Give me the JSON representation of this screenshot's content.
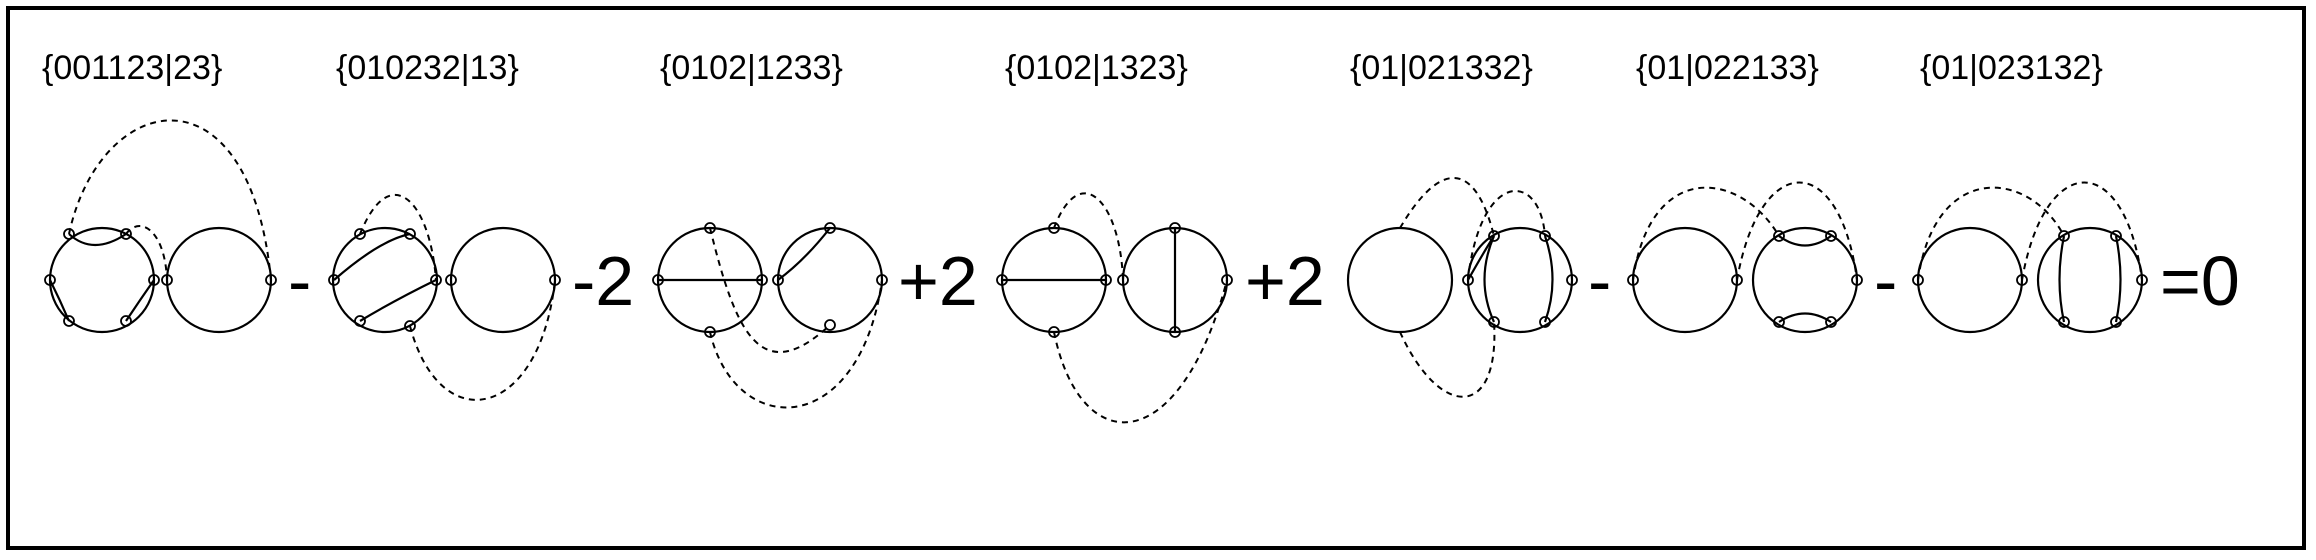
{
  "terms": [
    {
      "label": "{001123|23}"
    },
    {
      "label": "{010232|13}"
    },
    {
      "label": "{0102|1233}"
    },
    {
      "label": "{0102|1323}"
    },
    {
      "label": "{01|021332}"
    },
    {
      "label": "{01|022133}"
    },
    {
      "label": "{01|023132}"
    }
  ],
  "operators": [
    "-",
    "-2",
    "+2",
    "+2",
    "-",
    "-",
    "=0"
  ]
}
